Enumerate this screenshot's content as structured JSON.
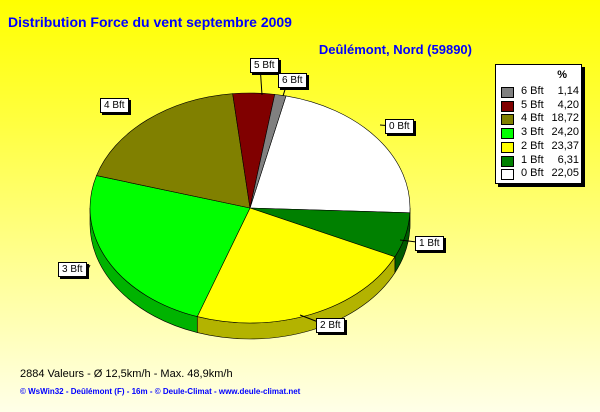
{
  "title": "Distribution Force du vent  septembre 2009",
  "subtitle": "Deûlémont, Nord (59890)",
  "legend": {
    "header": "%"
  },
  "stats": "2884 Valeurs   -   Ø 12,5km/h  -  Max. 48,9km/h",
  "footer": "© WsWin32  -  Deûlémont (F) - 16m  -  © Deule-Climat - www.deule-climat.net",
  "chart_data": {
    "type": "pie",
    "title": "Distribution Force du vent  septembre 2009",
    "unit": "%",
    "legend_position": "right",
    "slices": [
      {
        "label": "0 Bft",
        "value": 22.05,
        "value_text": "22,05",
        "color": "#ffffff"
      },
      {
        "label": "1 Bft",
        "value": 6.31,
        "value_text": "6,31",
        "color": "#008000"
      },
      {
        "label": "2 Bft",
        "value": 23.37,
        "value_text": "23,37",
        "color": "#ffff00"
      },
      {
        "label": "3 Bft",
        "value": 24.2,
        "value_text": "24,20",
        "color": "#00ff00"
      },
      {
        "label": "4 Bft",
        "value": 18.72,
        "value_text": "18,72",
        "color": "#808000"
      },
      {
        "label": "5 Bft",
        "value": 4.2,
        "value_text": "4,20",
        "color": "#800000"
      },
      {
        "label": "6 Bft",
        "value": 1.14,
        "value_text": "1,14",
        "color": "#808080"
      }
    ]
  }
}
